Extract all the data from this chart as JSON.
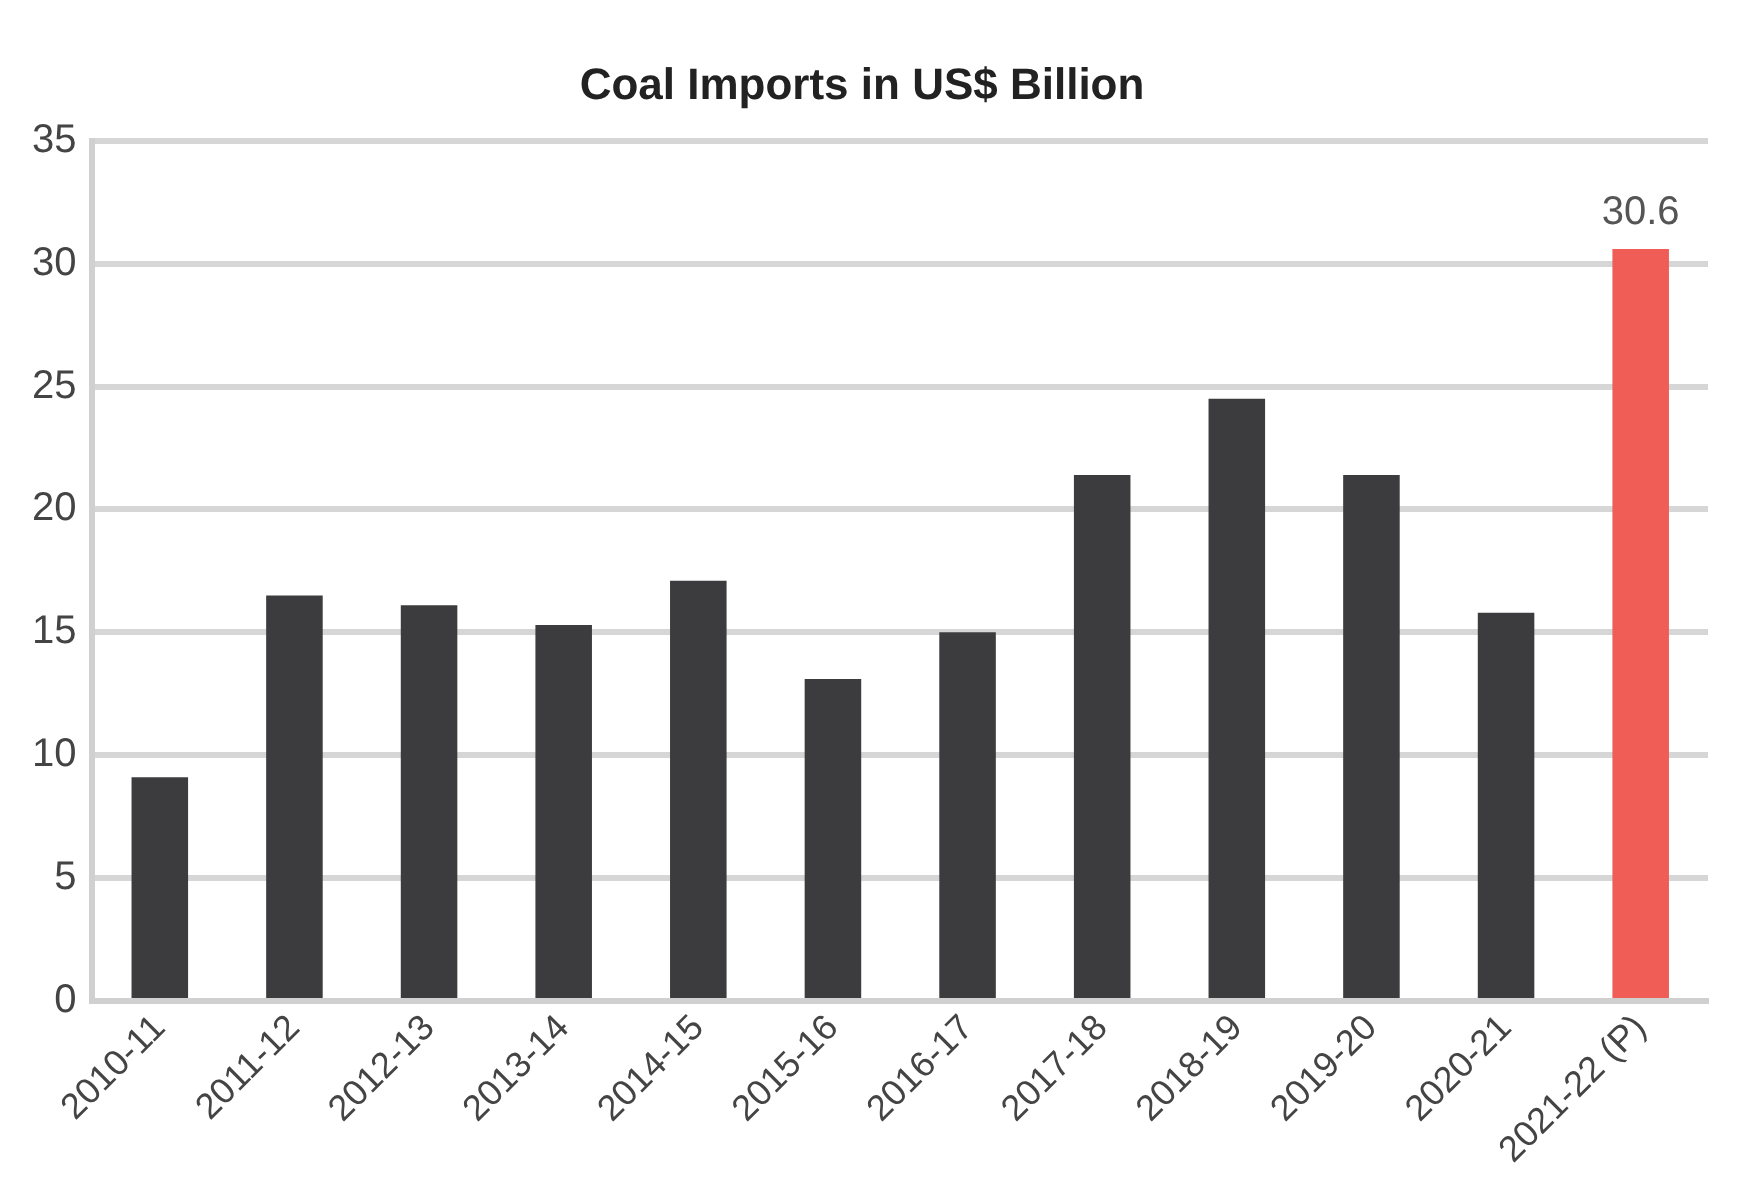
{
  "chart_data": {
    "type": "bar",
    "title": "Coal Imports in US$ Billion",
    "categories": [
      "2010-11",
      "2011-12",
      "2012-13",
      "2013-14",
      "2014-15",
      "2015-16",
      "2016-17",
      "2017-18",
      "2018-19",
      "2019-20",
      "2020-21",
      "2021-22 (P)"
    ],
    "values": [
      9.1,
      16.5,
      16.1,
      15.3,
      17.1,
      13.1,
      15.0,
      21.4,
      24.5,
      21.4,
      15.8,
      30.6
    ],
    "colors": [
      "#3c3c3e",
      "#3c3c3e",
      "#3c3c3e",
      "#3c3c3e",
      "#3c3c3e",
      "#3c3c3e",
      "#3c3c3e",
      "#3c3c3e",
      "#3c3c3e",
      "#3c3c3e",
      "#3c3c3e",
      "#f05d56"
    ],
    "value_labels": [
      null,
      null,
      null,
      null,
      null,
      null,
      null,
      null,
      null,
      null,
      null,
      "30.6"
    ],
    "ylim": [
      0,
      35
    ],
    "yticks": [
      0,
      5,
      10,
      15,
      20,
      25,
      30,
      35
    ],
    "grid": "y",
    "legend": false
  }
}
